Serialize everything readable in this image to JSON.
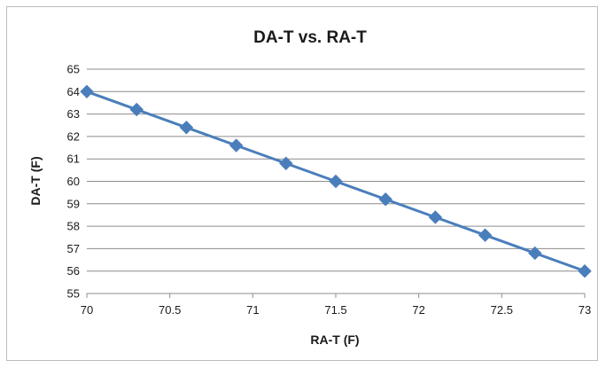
{
  "chart_data": {
    "type": "line",
    "title": "DA-T vs. RA-T",
    "xlabel": "RA-T (F)",
    "ylabel": "DA-T (F)",
    "xlim": [
      70,
      73
    ],
    "ylim": [
      55,
      65
    ],
    "xticks": [
      "70",
      "70.5",
      "71",
      "71.5",
      "72",
      "72.5",
      "73"
    ],
    "yticks": [
      "55",
      "56",
      "57",
      "58",
      "59",
      "60",
      "61",
      "62",
      "63",
      "64",
      "65"
    ],
    "grid": true,
    "legend": "none",
    "series": [
      {
        "color": "#4a7ebb",
        "marker": "diamond",
        "x": [
          70,
          70.3,
          70.6,
          70.9,
          71.2,
          71.5,
          71.8,
          72.1,
          72.4,
          72.7,
          73
        ],
        "y": [
          64,
          63.2,
          62.4,
          61.6,
          60.8,
          60,
          59.2,
          58.4,
          57.6,
          56.8,
          56
        ]
      }
    ]
  }
}
